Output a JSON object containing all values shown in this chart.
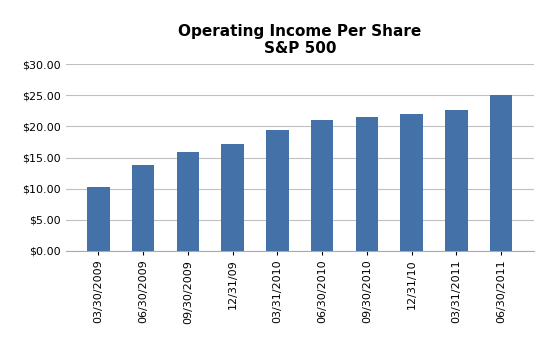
{
  "categories": [
    "03/30/2009",
    "06/30/2009",
    "09/30/2009",
    "12/31/09",
    "03/31/2010",
    "06/30/2010",
    "09/30/2010",
    "12/31/10",
    "03/31/2011",
    "06/30/2011"
  ],
  "values": [
    10.25,
    13.75,
    15.85,
    17.25,
    19.5,
    21.0,
    21.6,
    22.0,
    22.6,
    25.0
  ],
  "bar_color": "#4472A8",
  "title_line1": "Operating Income Per Share",
  "title_line2": "S&P 500",
  "ylim": [
    0,
    30
  ],
  "yticks": [
    0,
    5,
    10,
    15,
    20,
    25,
    30
  ],
  "title_fontsize": 11,
  "tick_fontsize": 8,
  "background_color": "#ffffff",
  "grid_color": "#c0c0c0",
  "bar_width": 0.5
}
